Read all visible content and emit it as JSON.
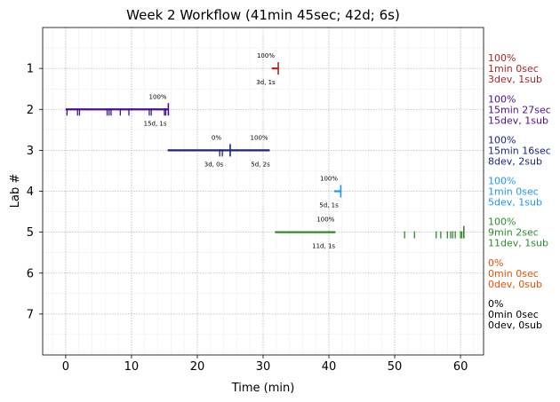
{
  "chart_data": {
    "type": "timeline",
    "title": "Week 2 Workflow (41min 45sec; 42d; 6s)",
    "xlabel": "Time (min)",
    "ylabel": "Lab #",
    "xlim": [
      -3.5,
      63.5
    ],
    "ylim": [
      8,
      0
    ],
    "x_ticks": [
      0,
      10,
      20,
      30,
      40,
      50,
      60
    ],
    "y_ticks": [
      1,
      2,
      3,
      4,
      5,
      6,
      7
    ],
    "grid": true,
    "labs": [
      {
        "lab": 1,
        "color": "#b22222",
        "segments": [
          {
            "start": 31.3,
            "end": 32.3
          }
        ],
        "ticks": [],
        "end_markers": [
          32.3
        ],
        "annotations": [
          {
            "x": 30.4,
            "pos": "above",
            "text": "100%"
          },
          {
            "x": 30.4,
            "pos": "below",
            "text": "3d, 1s"
          }
        ],
        "summary": [
          "100%",
          "1min 0sec",
          "3dev, 1sub"
        ]
      },
      {
        "lab": 2,
        "color": "#4b0f8c",
        "segments": [
          {
            "start": 0.0,
            "end": 15.6
          }
        ],
        "ticks": [
          0.2,
          1.8,
          2.1,
          6.3,
          6.6,
          6.9,
          8.3,
          9.6,
          12.7,
          13.0,
          15.0,
          15.2
        ],
        "end_markers": [
          15.6
        ],
        "annotations": [
          {
            "x": 14.0,
            "pos": "above",
            "text": "100%"
          },
          {
            "x": 13.6,
            "pos": "below",
            "text": "15d, 1s"
          }
        ],
        "summary": [
          "100%",
          "15min 27sec",
          "15dev, 1sub"
        ]
      },
      {
        "lab": 3,
        "color": "#1a237e",
        "segments": [
          {
            "start": 15.5,
            "end": 31.0
          }
        ],
        "ticks": [
          23.4,
          23.8
        ],
        "end_markers": [
          25.0
        ],
        "annotations": [
          {
            "x": 22.9,
            "pos": "above",
            "text": "0%"
          },
          {
            "x": 22.5,
            "pos": "below",
            "text": "3d, 0s"
          },
          {
            "x": 29.4,
            "pos": "above",
            "text": "100%"
          },
          {
            "x": 29.6,
            "pos": "below",
            "text": "5d, 2s"
          }
        ],
        "summary": [
          "100%",
          "15min 16sec",
          "8dev, 2sub"
        ]
      },
      {
        "lab": 4,
        "color": "#2196f3",
        "segments": [
          {
            "start": 40.8,
            "end": 41.8
          }
        ],
        "ticks": [],
        "end_markers": [
          41.8
        ],
        "annotations": [
          {
            "x": 40.0,
            "pos": "above",
            "text": "100%"
          },
          {
            "x": 40.0,
            "pos": "below",
            "text": "5d, 1s"
          }
        ],
        "summary": [
          "100%",
          "1min 0sec",
          "5dev, 1sub"
        ]
      },
      {
        "lab": 5,
        "color": "#2e8b2e",
        "segments": [
          {
            "start": 31.8,
            "end": 41.0
          }
        ],
        "ticks": [
          51.5,
          53.0,
          56.3,
          57.0,
          58.0,
          58.5,
          58.8,
          59.2,
          60.0,
          60.2
        ],
        "end_markers": [
          60.5
        ],
        "annotations": [
          {
            "x": 39.5,
            "pos": "above",
            "text": "100%"
          },
          {
            "x": 39.2,
            "pos": "below",
            "text": "11d, 1s"
          }
        ],
        "summary": [
          "100%",
          "9min 2sec",
          "11dev, 1sub"
        ]
      },
      {
        "lab": 6,
        "color": "#e65100",
        "segments": [],
        "ticks": [],
        "end_markers": [],
        "annotations": [],
        "summary": [
          "0%",
          "0min 0sec",
          "0dev, 0sub"
        ]
      },
      {
        "lab": 7,
        "color": "#000000",
        "segments": [],
        "ticks": [],
        "end_markers": [],
        "annotations": [],
        "summary": [
          "0%",
          "0min 0sec",
          "0dev, 0sub"
        ]
      }
    ]
  }
}
